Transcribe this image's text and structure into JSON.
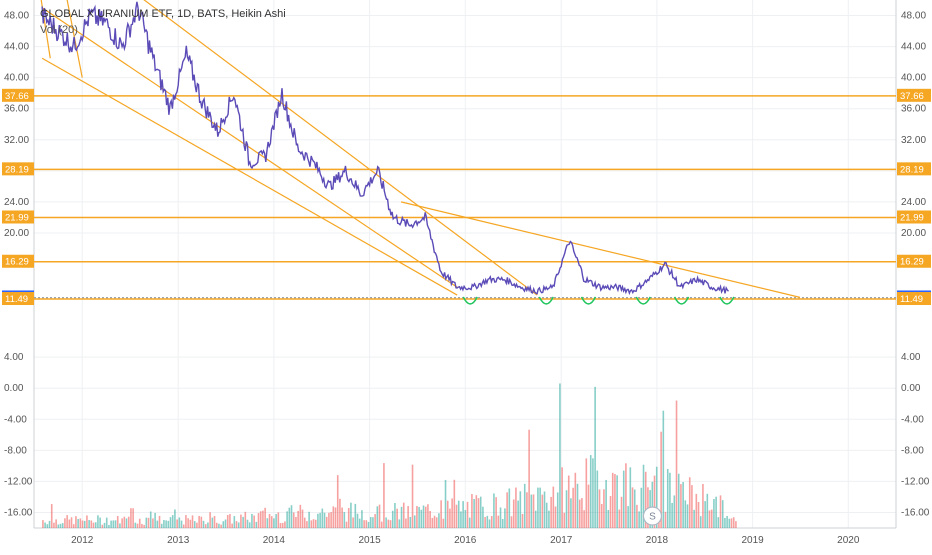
{
  "header": {
    "title": "GLOBAL X URANIUM ETF, 1D, BATS, Heikin Ashi",
    "volume_label": "Vol (20)"
  },
  "colors": {
    "price_line": "#5b4bb7",
    "trendline": "#f5a623",
    "level_line": "#f5a623",
    "level_badge_bg": "#f5a623",
    "current_badge_bg": "#2962ff",
    "bottom_marks": "#22c55e",
    "grid": "#eef0f3",
    "axis_text": "#555555",
    "vol_up": "#26a69a",
    "vol_down": "#ef5350"
  },
  "chart_data": {
    "type": "line",
    "title": "GLOBAL X URANIUM ETF, 1D, BATS, Heikin Ashi",
    "series": [
      {
        "name": "",
        "x": [
          "2011-08-01",
          "2011-10-01",
          "2011-12-01",
          "2012-02-01",
          "2012-04-01",
          "2012-06-01",
          "2012-08-01",
          "2012-10-01",
          "2012-12-01",
          "2013-02-01",
          "2013-04-01",
          "2013-06-01",
          "2013-08-01",
          "2013-10-01",
          "2013-12-01",
          "2014-02-01",
          "2014-04-01",
          "2014-06-01",
          "2014-08-01",
          "2014-10-01",
          "2014-12-01",
          "2015-02-01",
          "2015-04-01",
          "2015-06-01",
          "2015-08-01",
          "2015-10-01",
          "2015-12-01",
          "2016-02-01",
          "2016-04-01",
          "2016-06-01",
          "2016-08-01",
          "2016-10-01",
          "2016-12-01",
          "2017-02-01",
          "2017-04-01",
          "2017-06-01",
          "2017-08-01",
          "2017-10-01",
          "2017-12-01",
          "2018-02-01",
          "2018-04-01",
          "2018-06-01",
          "2018-08-01",
          "2018-10-01"
        ],
        "y": [
          48,
          46,
          44,
          48,
          47,
          44,
          49,
          42,
          36,
          43,
          37,
          33,
          38,
          29,
          30,
          38,
          31,
          29,
          26,
          28,
          25,
          28,
          22,
          21,
          22,
          15,
          13,
          13,
          14,
          14,
          13,
          12.5,
          13,
          19,
          14,
          13,
          13,
          12.5,
          14,
          16,
          13,
          14,
          13,
          12.5
        ]
      },
      {
        "name": "Vol (20)",
        "x": [
          "2012",
          "2013",
          "2014",
          "2015",
          "2016",
          "2017",
          "2018",
          "2018-10"
        ],
        "y": [
          1,
          1,
          2,
          2,
          3,
          6,
          4,
          2
        ]
      }
    ],
    "price_levels": [
      37.66,
      28.19,
      21.99,
      16.29,
      11.69,
      11.64,
      11.49
    ],
    "current_badges": [
      "11.69",
      "11.64"
    ],
    "x_ticks": [
      "2012",
      "2013",
      "2014",
      "2015",
      "2016",
      "2017",
      "2018",
      "2019",
      "2020"
    ],
    "y_ticks": [
      "48.00",
      "44.00",
      "40.00",
      "36.00",
      "32.00",
      "28.00",
      "24.00",
      "20.00",
      "4.00",
      "0.00",
      "-4.00",
      "-8.00",
      "-12.00",
      "-16.00"
    ],
    "level_labels": [
      "37.66",
      "28.19",
      "21.99",
      "16.29",
      "11.69",
      "11.64",
      "11.49"
    ],
    "ylim": [
      -18,
      50
    ],
    "grid": true,
    "legend": "top-left",
    "watermark": "S"
  }
}
